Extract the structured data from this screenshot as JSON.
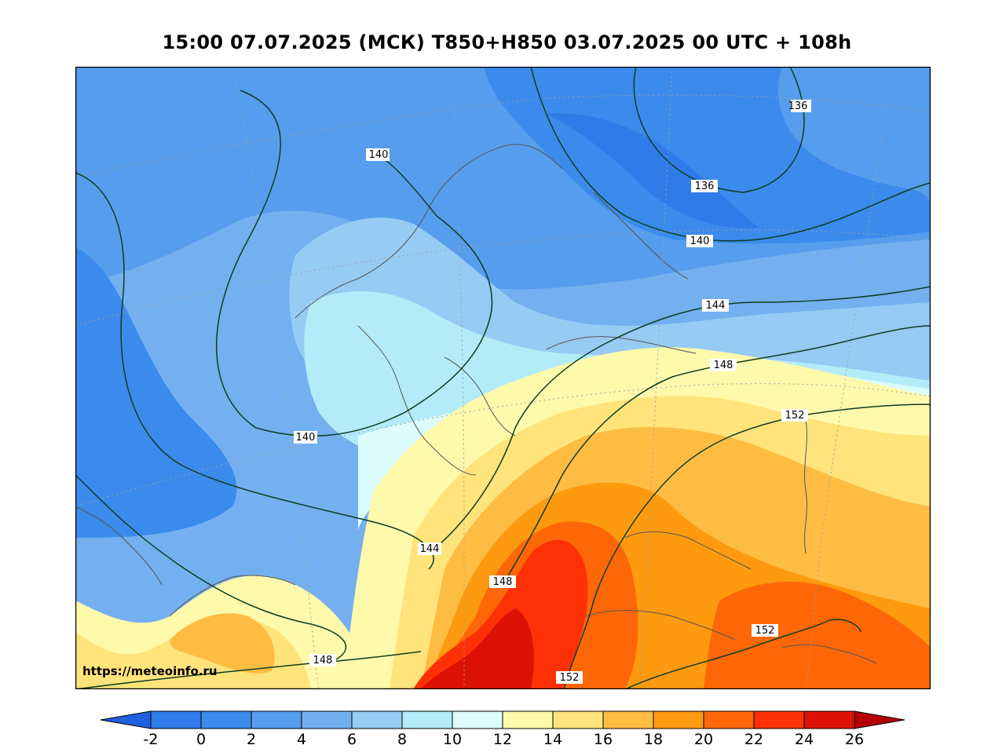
{
  "title": "15:00 07.07.2025 (МСК) T850+H850 03.07.2025 00 UTC + 108h",
  "watermark": "https://meteoinfo.ru",
  "contour_labels": {
    "c136a": "136",
    "c136b": "136",
    "c140a": "140",
    "c140b": "140",
    "c140c": "140",
    "c144a": "144",
    "c144b": "144",
    "c148a": "148",
    "c148b": "148",
    "c148c": "148",
    "c152a": "152",
    "c152b": "152",
    "c152c": "152"
  },
  "colorbar": {
    "ticks": [
      "-2",
      "0",
      "2",
      "4",
      "6",
      "8",
      "10",
      "12",
      "14",
      "16",
      "18",
      "20",
      "22",
      "24",
      "26"
    ],
    "colors": [
      "#1f60e0",
      "#2f7be9",
      "#3a8bec",
      "#569dee",
      "#74b0f0",
      "#96cbf4",
      "#b3ecf8",
      "#dcfcfd",
      "#fff9ac",
      "#ffe47b",
      "#ffbc43",
      "#fe9a0f",
      "#fe6708",
      "#fe3106",
      "#dd1207",
      "#b50005"
    ]
  }
}
